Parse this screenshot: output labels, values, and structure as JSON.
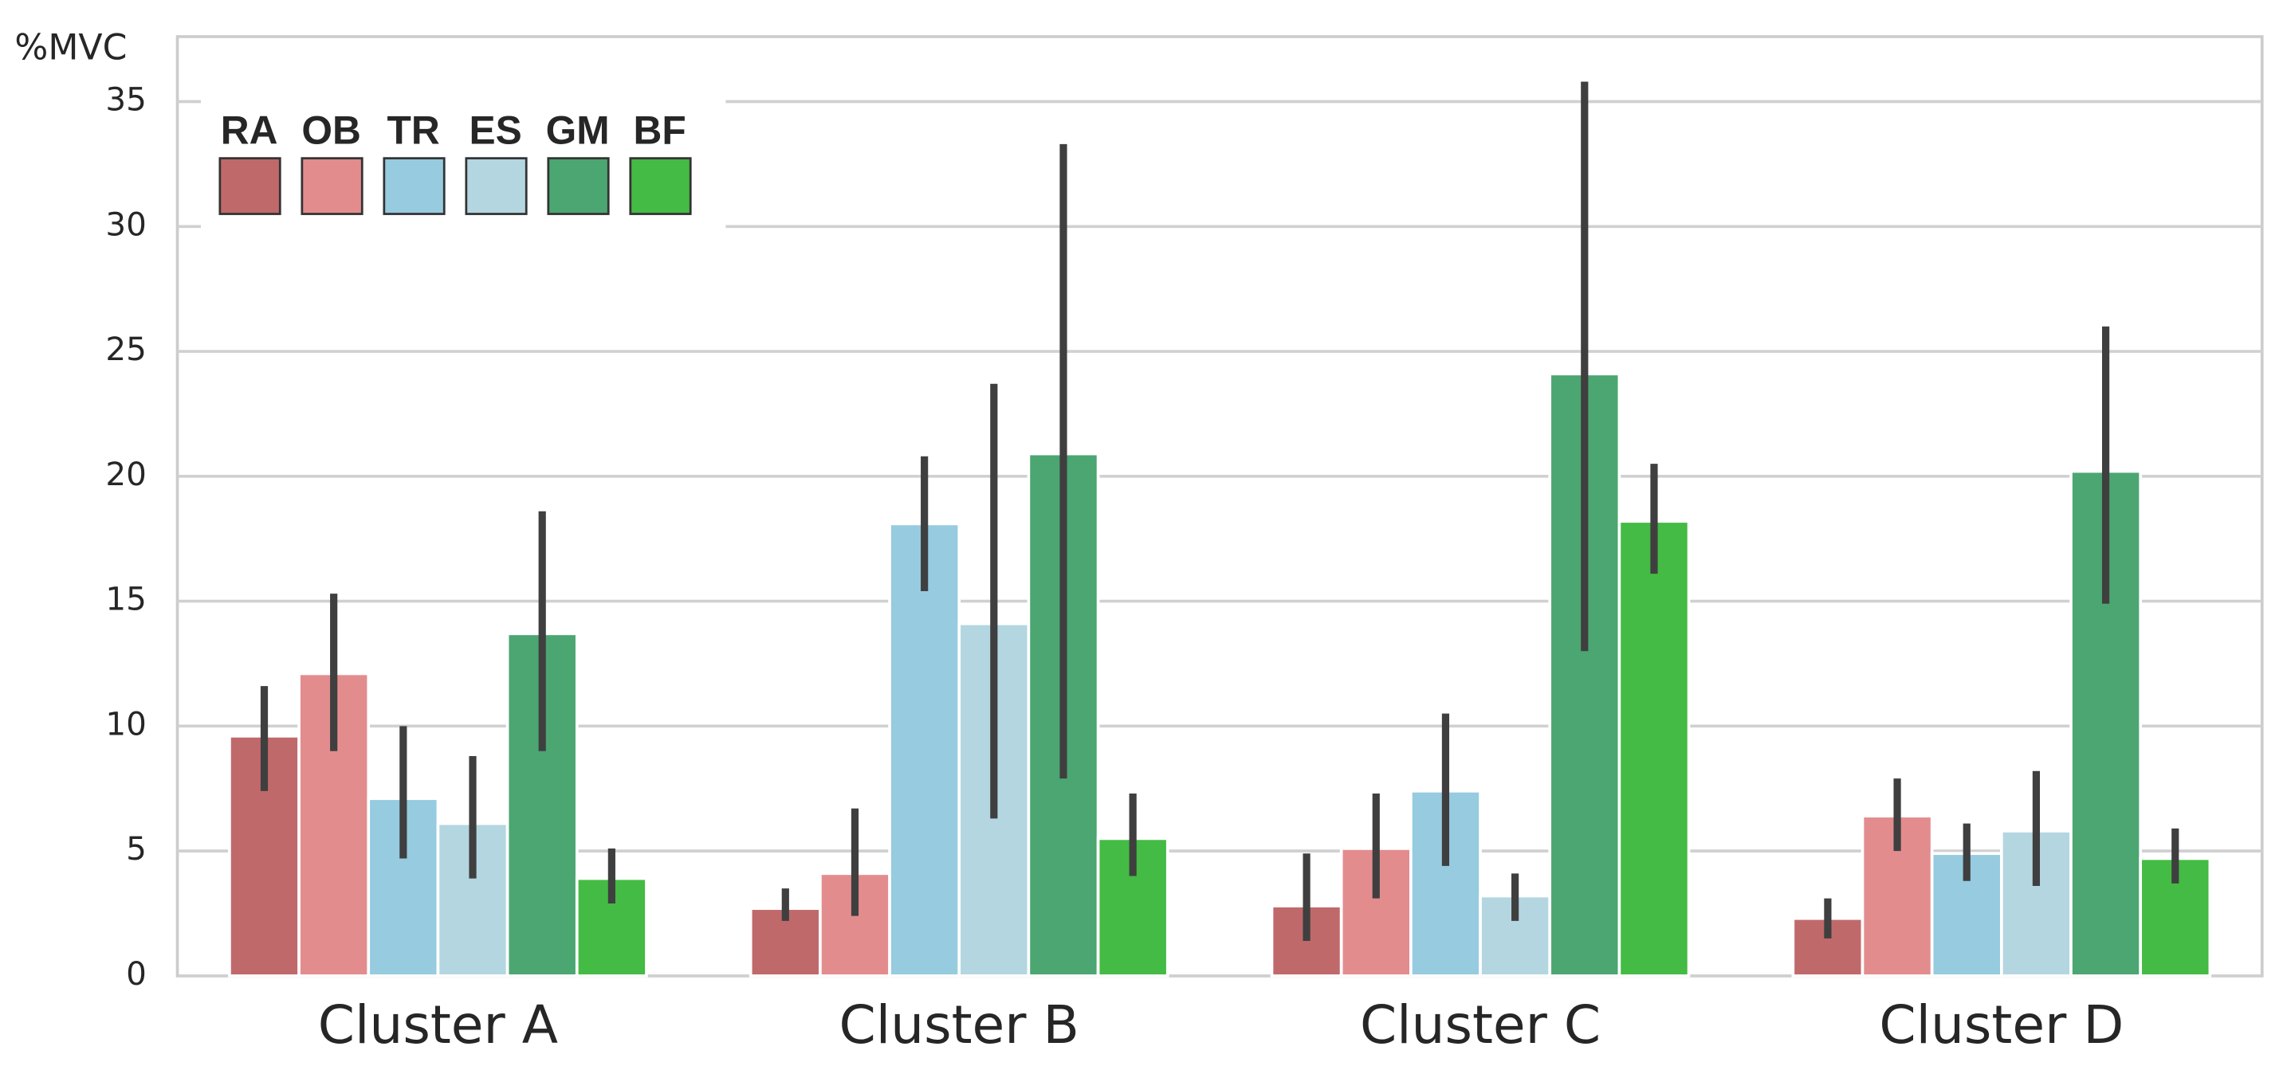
{
  "chart_data": {
    "type": "bar",
    "y_label": "%MVC",
    "categories": [
      "Cluster A",
      "Cluster B",
      "Cluster C",
      "Cluster D"
    ],
    "series": [
      {
        "name": "RA",
        "color": "#c0696b",
        "values": [
          9.6,
          2.7,
          2.8,
          2.3
        ],
        "ci_low": [
          7.4,
          2.2,
          1.4,
          1.5
        ],
        "ci_high": [
          11.6,
          3.5,
          4.9,
          3.1
        ]
      },
      {
        "name": "OB",
        "color": "#e38c8e",
        "values": [
          12.1,
          4.1,
          5.1,
          6.4
        ],
        "ci_low": [
          9.0,
          2.4,
          3.1,
          5.0
        ],
        "ci_high": [
          15.3,
          6.7,
          7.3,
          7.9
        ]
      },
      {
        "name": "TR",
        "color": "#96cbe0",
        "values": [
          7.1,
          18.1,
          7.4,
          4.9
        ],
        "ci_low": [
          4.7,
          15.4,
          4.4,
          3.8
        ],
        "ci_high": [
          10.0,
          20.8,
          10.5,
          6.1
        ]
      },
      {
        "name": "ES",
        "color": "#b4d6e1",
        "values": [
          6.1,
          14.1,
          3.2,
          5.8
        ],
        "ci_low": [
          3.9,
          6.3,
          2.2,
          3.6
        ],
        "ci_high": [
          8.8,
          23.7,
          4.1,
          8.2
        ]
      },
      {
        "name": "GM",
        "color": "#4ba672",
        "values": [
          13.7,
          20.9,
          24.1,
          20.2
        ],
        "ci_low": [
          9.0,
          7.9,
          13.0,
          14.9
        ],
        "ci_high": [
          18.6,
          33.3,
          35.8,
          26.0
        ]
      },
      {
        "name": "BF",
        "color": "#44bb44",
        "values": [
          3.9,
          5.5,
          18.2,
          4.7
        ],
        "ci_low": [
          2.9,
          4.0,
          16.1,
          3.7
        ],
        "ci_high": [
          5.1,
          7.3,
          20.5,
          5.9
        ]
      }
    ],
    "ylim": [
      0,
      37.6
    ],
    "yticks": [
      0,
      5,
      10,
      15,
      20,
      25,
      30,
      35
    ],
    "grid": true,
    "legend": "upper left"
  }
}
